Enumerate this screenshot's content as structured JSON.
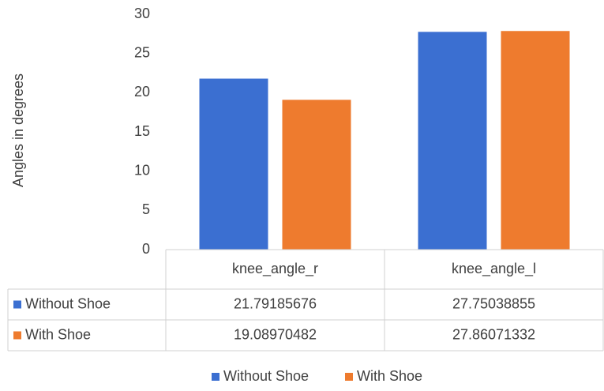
{
  "chart_data": {
    "type": "bar",
    "y_label": "Angles in degrees",
    "categories": [
      "knee_angle_r",
      "knee_angle_l"
    ],
    "series": [
      {
        "name": "Without Shoe",
        "color": "#3b6fd1",
        "values": [
          21.79185676,
          27.75038855
        ]
      },
      {
        "name": "With Shoe",
        "color": "#ee7b2e",
        "values": [
          19.08970482,
          27.86071332
        ]
      }
    ],
    "ylim": [
      0,
      30
    ],
    "yticks": [
      0,
      5,
      10,
      15,
      20,
      25,
      30
    ],
    "grid": false,
    "data_table": true,
    "legend": "bottom"
  }
}
